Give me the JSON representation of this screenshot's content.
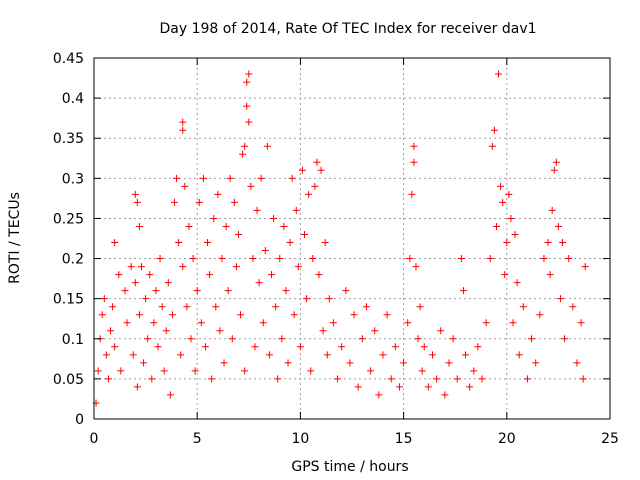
{
  "chart_data": {
    "type": "scatter",
    "title": "Day 198 of 2014, Rate Of TEC Index for receiver dav1",
    "xlabel": "GPS time / hours",
    "ylabel": "ROTI / TECUs",
    "xlim": [
      0,
      25
    ],
    "ylim": [
      0,
      0.45
    ],
    "x_ticks": [
      0,
      5,
      10,
      15,
      20,
      25
    ],
    "y_ticks": [
      0,
      0.05,
      0.1,
      0.15,
      0.2,
      0.25,
      0.3,
      0.35,
      0.4,
      0.45
    ],
    "x_tick_labels": [
      "0",
      "5",
      "10",
      "15",
      "20",
      "25"
    ],
    "y_tick_labels": [
      "0",
      "0.05",
      "0.1",
      "0.15",
      "0.2",
      "0.25",
      "0.3",
      "0.35",
      "0.4",
      "0.45"
    ],
    "grid": true,
    "marker": "+",
    "color": "#ff0000",
    "series": [
      {
        "points": [
          [
            0.1,
            0.02
          ],
          [
            0.2,
            0.06
          ],
          [
            0.3,
            0.1
          ],
          [
            0.4,
            0.13
          ],
          [
            0.5,
            0.15
          ],
          [
            0.6,
            0.08
          ],
          [
            0.7,
            0.05
          ],
          [
            0.8,
            0.11
          ],
          [
            0.9,
            0.14
          ],
          [
            1.0,
            0.09
          ],
          [
            1.0,
            0.22
          ],
          [
            1.2,
            0.18
          ],
          [
            1.3,
            0.06
          ],
          [
            1.5,
            0.16
          ],
          [
            1.6,
            0.12
          ],
          [
            1.8,
            0.19
          ],
          [
            1.9,
            0.08
          ],
          [
            2.0,
            0.17
          ],
          [
            2.1,
            0.04
          ],
          [
            2.2,
            0.13
          ],
          [
            2.0,
            0.28
          ],
          [
            2.1,
            0.27
          ],
          [
            2.2,
            0.24
          ],
          [
            2.3,
            0.19
          ],
          [
            2.4,
            0.07
          ],
          [
            2.5,
            0.15
          ],
          [
            2.6,
            0.1
          ],
          [
            2.7,
            0.18
          ],
          [
            2.8,
            0.05
          ],
          [
            2.9,
            0.12
          ],
          [
            3.0,
            0.16
          ],
          [
            3.1,
            0.09
          ],
          [
            3.2,
            0.2
          ],
          [
            3.3,
            0.14
          ],
          [
            3.4,
            0.06
          ],
          [
            3.5,
            0.11
          ],
          [
            3.6,
            0.17
          ],
          [
            3.7,
            0.03
          ],
          [
            3.8,
            0.13
          ],
          [
            3.9,
            0.27
          ],
          [
            4.0,
            0.3
          ],
          [
            4.1,
            0.22
          ],
          [
            4.2,
            0.08
          ],
          [
            4.3,
            0.19
          ],
          [
            4.3,
            0.37
          ],
          [
            4.3,
            0.36
          ],
          [
            4.4,
            0.29
          ],
          [
            4.5,
            0.14
          ],
          [
            4.6,
            0.24
          ],
          [
            4.7,
            0.1
          ],
          [
            4.8,
            0.2
          ],
          [
            4.9,
            0.06
          ],
          [
            5.0,
            0.16
          ],
          [
            5.1,
            0.27
          ],
          [
            5.2,
            0.12
          ],
          [
            5.3,
            0.3
          ],
          [
            5.4,
            0.09
          ],
          [
            5.5,
            0.22
          ],
          [
            5.6,
            0.18
          ],
          [
            5.7,
            0.05
          ],
          [
            5.8,
            0.25
          ],
          [
            5.9,
            0.14
          ],
          [
            6.0,
            0.28
          ],
          [
            6.1,
            0.11
          ],
          [
            6.2,
            0.2
          ],
          [
            6.3,
            0.07
          ],
          [
            6.4,
            0.24
          ],
          [
            6.5,
            0.16
          ],
          [
            6.6,
            0.3
          ],
          [
            6.7,
            0.1
          ],
          [
            6.8,
            0.27
          ],
          [
            6.9,
            0.19
          ],
          [
            7.0,
            0.23
          ],
          [
            7.1,
            0.13
          ],
          [
            7.2,
            0.33
          ],
          [
            7.3,
            0.06
          ],
          [
            7.3,
            0.34
          ],
          [
            7.4,
            0.42
          ],
          [
            7.4,
            0.39
          ],
          [
            7.5,
            0.37
          ],
          [
            7.5,
            0.43
          ],
          [
            7.6,
            0.29
          ],
          [
            7.7,
            0.2
          ],
          [
            7.8,
            0.09
          ],
          [
            7.9,
            0.26
          ],
          [
            8.0,
            0.17
          ],
          [
            8.1,
            0.3
          ],
          [
            8.2,
            0.12
          ],
          [
            8.3,
            0.21
          ],
          [
            8.4,
            0.34
          ],
          [
            8.5,
            0.08
          ],
          [
            8.6,
            0.18
          ],
          [
            8.7,
            0.25
          ],
          [
            8.8,
            0.14
          ],
          [
            8.9,
            0.05
          ],
          [
            9.0,
            0.2
          ],
          [
            9.1,
            0.1
          ],
          [
            9.2,
            0.24
          ],
          [
            9.3,
            0.16
          ],
          [
            9.4,
            0.07
          ],
          [
            9.5,
            0.22
          ],
          [
            9.6,
            0.3
          ],
          [
            9.7,
            0.13
          ],
          [
            9.8,
            0.26
          ],
          [
            9.9,
            0.19
          ],
          [
            10.0,
            0.09
          ],
          [
            10.1,
            0.31
          ],
          [
            10.2,
            0.23
          ],
          [
            10.3,
            0.15
          ],
          [
            10.4,
            0.28
          ],
          [
            10.5,
            0.06
          ],
          [
            10.6,
            0.2
          ],
          [
            10.7,
            0.29
          ],
          [
            10.8,
            0.32
          ],
          [
            10.9,
            0.18
          ],
          [
            11.0,
            0.31
          ],
          [
            11.1,
            0.11
          ],
          [
            11.2,
            0.22
          ],
          [
            11.3,
            0.08
          ],
          [
            11.4,
            0.15
          ],
          [
            11.6,
            0.12
          ],
          [
            11.8,
            0.05
          ],
          [
            12.0,
            0.09
          ],
          [
            12.2,
            0.16
          ],
          [
            12.4,
            0.07
          ],
          [
            12.6,
            0.13
          ],
          [
            12.8,
            0.04
          ],
          [
            13.0,
            0.1
          ],
          [
            13.2,
            0.14
          ],
          [
            13.4,
            0.06
          ],
          [
            13.6,
            0.11
          ],
          [
            13.8,
            0.03
          ],
          [
            14.0,
            0.08
          ],
          [
            14.2,
            0.13
          ],
          [
            14.4,
            0.05
          ],
          [
            14.6,
            0.09
          ],
          [
            14.8,
            0.04
          ],
          [
            15.0,
            0.07
          ],
          [
            15.2,
            0.12
          ],
          [
            15.3,
            0.2
          ],
          [
            15.4,
            0.28
          ],
          [
            15.5,
            0.34
          ],
          [
            15.5,
            0.32
          ],
          [
            15.6,
            0.19
          ],
          [
            15.7,
            0.1
          ],
          [
            15.8,
            0.14
          ],
          [
            15.9,
            0.06
          ],
          [
            16.0,
            0.09
          ],
          [
            16.2,
            0.04
          ],
          [
            16.4,
            0.08
          ],
          [
            16.6,
            0.05
          ],
          [
            16.8,
            0.11
          ],
          [
            17.0,
            0.03
          ],
          [
            17.2,
            0.07
          ],
          [
            17.4,
            0.1
          ],
          [
            17.6,
            0.05
          ],
          [
            17.8,
            0.2
          ],
          [
            17.9,
            0.16
          ],
          [
            18.0,
            0.08
          ],
          [
            18.2,
            0.04
          ],
          [
            18.4,
            0.06
          ],
          [
            18.6,
            0.09
          ],
          [
            18.8,
            0.05
          ],
          [
            19.0,
            0.12
          ],
          [
            19.2,
            0.2
          ],
          [
            19.3,
            0.34
          ],
          [
            19.4,
            0.36
          ],
          [
            19.5,
            0.24
          ],
          [
            19.6,
            0.43
          ],
          [
            19.7,
            0.29
          ],
          [
            19.8,
            0.27
          ],
          [
            19.9,
            0.18
          ],
          [
            20.0,
            0.22
          ],
          [
            20.1,
            0.28
          ],
          [
            20.2,
            0.25
          ],
          [
            20.3,
            0.12
          ],
          [
            20.4,
            0.23
          ],
          [
            20.5,
            0.17
          ],
          [
            20.6,
            0.08
          ],
          [
            20.8,
            0.14
          ],
          [
            21.0,
            0.05
          ],
          [
            21.2,
            0.1
          ],
          [
            21.4,
            0.07
          ],
          [
            21.6,
            0.13
          ],
          [
            21.8,
            0.2
          ],
          [
            22.0,
            0.22
          ],
          [
            22.1,
            0.18
          ],
          [
            22.2,
            0.26
          ],
          [
            22.3,
            0.31
          ],
          [
            22.4,
            0.32
          ],
          [
            22.5,
            0.24
          ],
          [
            22.6,
            0.15
          ],
          [
            22.7,
            0.22
          ],
          [
            22.8,
            0.1
          ],
          [
            23.0,
            0.2
          ],
          [
            23.2,
            0.14
          ],
          [
            23.4,
            0.07
          ],
          [
            23.6,
            0.12
          ],
          [
            23.7,
            0.05
          ],
          [
            23.8,
            0.19
          ]
        ]
      }
    ]
  }
}
